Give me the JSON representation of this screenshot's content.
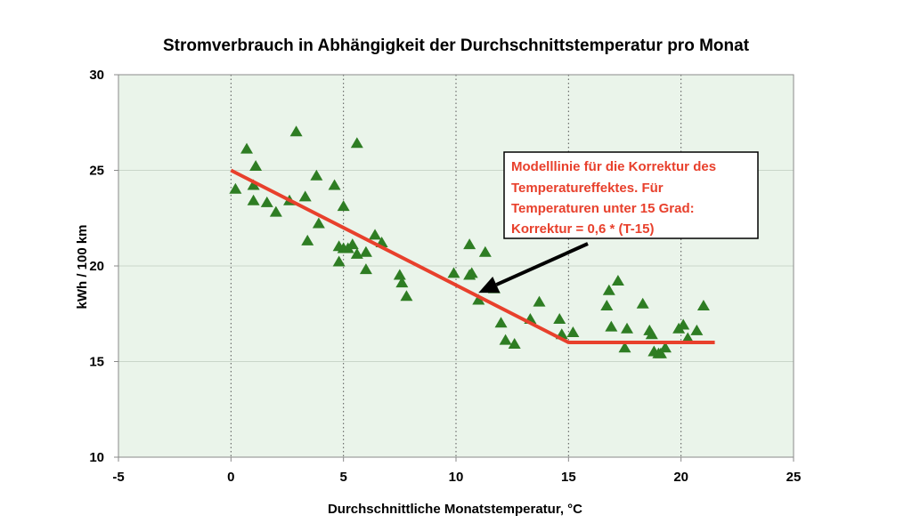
{
  "chart_data": {
    "type": "scatter",
    "title": "Stromverbrauch in Abhängigkeit der Durchschnittstemperatur pro Monat",
    "xlabel": "Durchschnittliche Monatstemperatur, °C",
    "ylabel": "kWh / 100 km",
    "xlim": [
      -5,
      25
    ],
    "ylim": [
      10,
      30
    ],
    "xticks": [
      "-5",
      "0",
      "5",
      "10",
      "15",
      "20",
      "25"
    ],
    "yticks": [
      "10",
      "15",
      "20",
      "25",
      "30"
    ],
    "grid": "vertical dotted, horizontal solid",
    "colors": {
      "plot_background": "#eaf4ea",
      "marker": "#2e7d23",
      "model_line": "#e8402c",
      "annotation_text": "#e8402c",
      "arrow": "#000000"
    },
    "series": [
      {
        "marker": "triangle",
        "x": [
          0.2,
          0.7,
          1.0,
          1.1,
          1.0,
          1.6,
          2.0,
          2.6,
          2.9,
          3.3,
          3.4,
          3.8,
          3.9,
          4.6,
          4.8,
          5.0,
          5.0,
          4.8,
          5.2,
          5.4,
          5.6,
          5.6,
          6.0,
          6.0,
          6.4,
          6.7,
          7.5,
          7.8,
          7.6,
          9.9,
          10.6,
          10.7,
          10.6,
          11.3,
          11.0,
          11.7,
          12.0,
          12.2,
          12.6,
          13.3,
          13.7,
          14.6,
          14.7,
          15.2,
          16.8,
          16.7,
          16.9,
          17.2,
          17.5,
          17.6,
          18.3,
          18.6,
          18.7,
          18.8,
          19.0,
          19.1,
          19.3,
          19.9,
          20.1,
          20.3,
          20.7,
          21.0
        ],
        "y": [
          24.0,
          26.1,
          24.2,
          25.2,
          23.4,
          23.3,
          22.8,
          23.4,
          27.0,
          23.6,
          21.3,
          24.7,
          22.2,
          24.2,
          21.0,
          23.1,
          20.9,
          20.2,
          20.9,
          21.1,
          26.4,
          20.6,
          20.7,
          19.8,
          21.6,
          21.2,
          19.5,
          18.4,
          19.1,
          19.6,
          21.1,
          19.6,
          19.5,
          20.7,
          18.2,
          18.8,
          17.0,
          16.1,
          15.9,
          17.2,
          18.1,
          17.2,
          16.4,
          16.5,
          18.7,
          17.9,
          16.8,
          19.2,
          15.7,
          16.7,
          18.0,
          16.6,
          16.4,
          15.5,
          15.4,
          15.4,
          15.7,
          16.7,
          16.9,
          16.2,
          16.6,
          17.9
        ]
      }
    ],
    "model_line": {
      "x": [
        0,
        15,
        21.5
      ],
      "y": [
        25,
        16,
        16
      ]
    },
    "annotation": {
      "lines": [
        "Modelllinie für die Korrektur des",
        "Temperatureffektes. Für",
        "Temperaturen unter 15 Grad:",
        "Korrektur = 0,6 * (T-15)"
      ],
      "arrow_to": {
        "x": 11.0,
        "y": 18.6
      }
    }
  }
}
